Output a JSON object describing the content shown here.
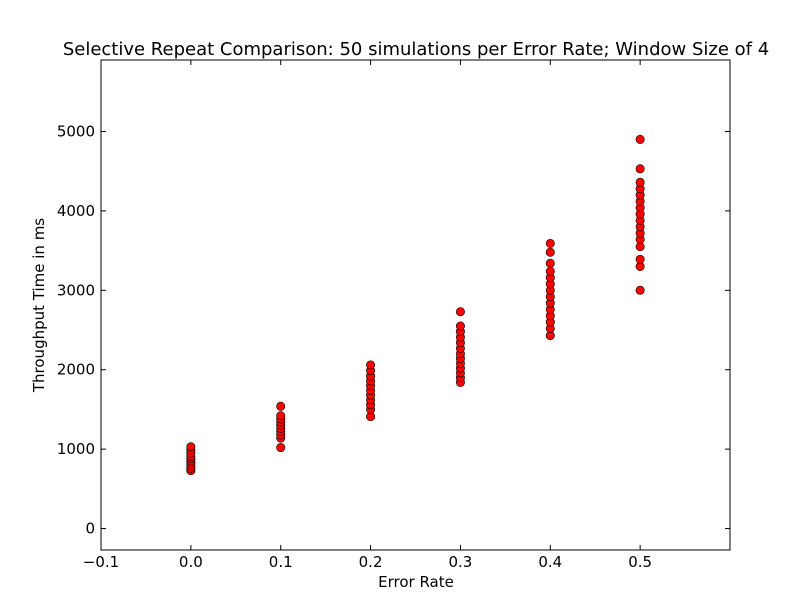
{
  "chart_data": {
    "type": "scatter",
    "title": "Selective Repeat Comparison: 50 simulations per Error Rate; Window Size of 4",
    "xlabel": "Error Rate",
    "ylabel": "Throughput Time in ms",
    "xlim": [
      -0.1,
      0.6
    ],
    "ylim": [
      -270,
      5900
    ],
    "x_ticks": [
      -0.1,
      0.0,
      0.1,
      0.2,
      0.3,
      0.4,
      0.5
    ],
    "x_tick_labels": [
      "−0.1",
      "0.0",
      "0.1",
      "0.2",
      "0.3",
      "0.4",
      "0.5"
    ],
    "y_ticks": [
      0,
      1000,
      2000,
      3000,
      4000,
      5000
    ],
    "y_tick_labels": [
      "0",
      "1000",
      "2000",
      "3000",
      "4000",
      "5000"
    ],
    "grid": false,
    "marker_color": "#ff0000",
    "marker_edge_color": "#000000",
    "series": [
      {
        "values": [
          {
            "x": 0.0,
            "y": 730
          },
          {
            "x": 0.0,
            "y": 760
          },
          {
            "x": 0.0,
            "y": 790
          },
          {
            "x": 0.0,
            "y": 820
          },
          {
            "x": 0.0,
            "y": 850
          },
          {
            "x": 0.0,
            "y": 880
          },
          {
            "x": 0.0,
            "y": 910
          },
          {
            "x": 0.0,
            "y": 950
          },
          {
            "x": 0.0,
            "y": 990
          },
          {
            "x": 0.0,
            "y": 1030
          },
          {
            "x": 0.1,
            "y": 1020
          },
          {
            "x": 0.1,
            "y": 1140
          },
          {
            "x": 0.1,
            "y": 1180
          },
          {
            "x": 0.1,
            "y": 1220
          },
          {
            "x": 0.1,
            "y": 1260
          },
          {
            "x": 0.1,
            "y": 1300
          },
          {
            "x": 0.1,
            "y": 1340
          },
          {
            "x": 0.1,
            "y": 1380
          },
          {
            "x": 0.1,
            "y": 1420
          },
          {
            "x": 0.1,
            "y": 1540
          },
          {
            "x": 0.2,
            "y": 1410
          },
          {
            "x": 0.2,
            "y": 1500
          },
          {
            "x": 0.2,
            "y": 1560
          },
          {
            "x": 0.2,
            "y": 1620
          },
          {
            "x": 0.2,
            "y": 1680
          },
          {
            "x": 0.2,
            "y": 1740
          },
          {
            "x": 0.2,
            "y": 1800
          },
          {
            "x": 0.2,
            "y": 1860
          },
          {
            "x": 0.2,
            "y": 1920
          },
          {
            "x": 0.2,
            "y": 1990
          },
          {
            "x": 0.2,
            "y": 2060
          },
          {
            "x": 0.3,
            "y": 1840
          },
          {
            "x": 0.3,
            "y": 1900
          },
          {
            "x": 0.3,
            "y": 1960
          },
          {
            "x": 0.3,
            "y": 2020
          },
          {
            "x": 0.3,
            "y": 2080
          },
          {
            "x": 0.3,
            "y": 2140
          },
          {
            "x": 0.3,
            "y": 2200
          },
          {
            "x": 0.3,
            "y": 2270
          },
          {
            "x": 0.3,
            "y": 2340
          },
          {
            "x": 0.3,
            "y": 2410
          },
          {
            "x": 0.3,
            "y": 2480
          },
          {
            "x": 0.3,
            "y": 2550
          },
          {
            "x": 0.3,
            "y": 2730
          },
          {
            "x": 0.4,
            "y": 2430
          },
          {
            "x": 0.4,
            "y": 2520
          },
          {
            "x": 0.4,
            "y": 2600
          },
          {
            "x": 0.4,
            "y": 2680
          },
          {
            "x": 0.4,
            "y": 2760
          },
          {
            "x": 0.4,
            "y": 2840
          },
          {
            "x": 0.4,
            "y": 2920
          },
          {
            "x": 0.4,
            "y": 3000
          },
          {
            "x": 0.4,
            "y": 3080
          },
          {
            "x": 0.4,
            "y": 3160
          },
          {
            "x": 0.4,
            "y": 3240
          },
          {
            "x": 0.4,
            "y": 3340
          },
          {
            "x": 0.4,
            "y": 3480
          },
          {
            "x": 0.4,
            "y": 3590
          },
          {
            "x": 0.5,
            "y": 3000
          },
          {
            "x": 0.5,
            "y": 3300
          },
          {
            "x": 0.5,
            "y": 3390
          },
          {
            "x": 0.5,
            "y": 3550
          },
          {
            "x": 0.5,
            "y": 3640
          },
          {
            "x": 0.5,
            "y": 3720
          },
          {
            "x": 0.5,
            "y": 3800
          },
          {
            "x": 0.5,
            "y": 3880
          },
          {
            "x": 0.5,
            "y": 3960
          },
          {
            "x": 0.5,
            "y": 4040
          },
          {
            "x": 0.5,
            "y": 4120
          },
          {
            "x": 0.5,
            "y": 4200
          },
          {
            "x": 0.5,
            "y": 4280
          },
          {
            "x": 0.5,
            "y": 4360
          },
          {
            "x": 0.5,
            "y": 4530
          },
          {
            "x": 0.5,
            "y": 4900
          }
        ]
      }
    ]
  }
}
